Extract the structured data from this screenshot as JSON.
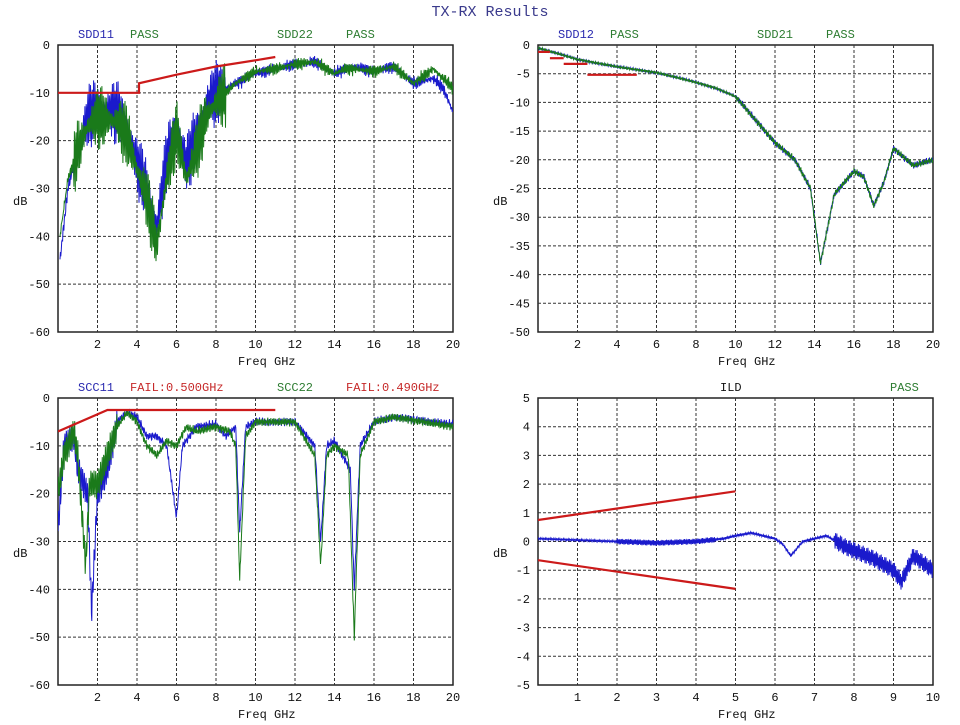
{
  "title": "TX-RX Results",
  "colors": {
    "blue": "#1a1acc",
    "green": "#1a7a1a",
    "red": "#cc1a1a",
    "grid": "#333333"
  },
  "chart_data": [
    {
      "type": "line",
      "xlabel": "Freq GHz",
      "ylabel": "dB",
      "xlim": [
        0,
        20
      ],
      "ylim": [
        -60,
        0
      ],
      "xticks": [
        2,
        4,
        6,
        8,
        10,
        12,
        14,
        16,
        18,
        20
      ],
      "yticks": [
        0,
        -10,
        -20,
        -30,
        -40,
        -50,
        -60
      ],
      "labels": [
        {
          "text": "SDD11",
          "color": "blue"
        },
        {
          "text": "PASS",
          "color": "green"
        },
        {
          "text": "SDD22",
          "color": "green"
        },
        {
          "text": "PASS",
          "color": "green"
        }
      ],
      "series": [
        {
          "name": "SDD11",
          "color": "blue",
          "ripple": "rl",
          "points": [
            [
              0.1,
              -45
            ],
            [
              0.5,
              -30
            ],
            [
              1,
              -22
            ],
            [
              1.5,
              -15
            ],
            [
              2,
              -13
            ],
            [
              3,
              -14
            ],
            [
              3.5,
              -17
            ],
            [
              4,
              -25
            ],
            [
              4.5,
              -30
            ],
            [
              5,
              -38
            ],
            [
              5.5,
              -24
            ],
            [
              6,
              -16
            ],
            [
              6.5,
              -25
            ],
            [
              7,
              -19
            ],
            [
              7.5,
              -12
            ],
            [
              8,
              -10
            ],
            [
              9,
              -8
            ],
            [
              10,
              -6
            ],
            [
              11,
              -5
            ],
            [
              12,
              -4
            ],
            [
              13,
              -3.5
            ],
            [
              14,
              -6
            ],
            [
              14.5,
              -5
            ],
            [
              15,
              -4.5
            ],
            [
              16,
              -5.5
            ],
            [
              17,
              -4.5
            ],
            [
              18,
              -8
            ],
            [
              19,
              -7
            ],
            [
              19.5,
              -9
            ],
            [
              20,
              -14
            ]
          ]
        },
        {
          "name": "SDD22",
          "color": "green",
          "ripple": "rl",
          "points": [
            [
              0.1,
              -40
            ],
            [
              0.5,
              -28
            ],
            [
              1,
              -22
            ],
            [
              1.5,
              -17
            ],
            [
              2,
              -15
            ],
            [
              3,
              -16
            ],
            [
              3.5,
              -19
            ],
            [
              4,
              -26
            ],
            [
              4.5,
              -32
            ],
            [
              5,
              -42
            ],
            [
              5.5,
              -28
            ],
            [
              6,
              -18
            ],
            [
              6.5,
              -28
            ],
            [
              7,
              -22
            ],
            [
              7.5,
              -15
            ],
            [
              8,
              -12
            ],
            [
              9,
              -8
            ],
            [
              10,
              -5.5
            ],
            [
              11,
              -5
            ],
            [
              12,
              -4
            ],
            [
              13,
              -3.5
            ],
            [
              14,
              -6
            ],
            [
              14.5,
              -5
            ],
            [
              15,
              -5
            ],
            [
              16,
              -5.5
            ],
            [
              17,
              -4.5
            ],
            [
              18,
              -8
            ],
            [
              19,
              -5
            ],
            [
              20,
              -9
            ]
          ]
        },
        {
          "name": "limit",
          "color": "red",
          "limit": true,
          "points": [
            [
              0,
              -10
            ],
            [
              4.1,
              -10
            ],
            [
              4.1,
              -8
            ],
            [
              6,
              -6.2
            ],
            [
              8,
              -4.5
            ],
            [
              10,
              -3.2
            ],
            [
              11,
              -2.5
            ]
          ]
        }
      ]
    },
    {
      "type": "line",
      "xlabel": "Freq GHz",
      "ylabel": "dB",
      "xlim": [
        0,
        20
      ],
      "ylim": [
        -50,
        0
      ],
      "xticks": [
        2,
        4,
        6,
        8,
        10,
        12,
        14,
        16,
        18,
        20
      ],
      "yticks": [
        0,
        -5,
        -10,
        -15,
        -20,
        -25,
        -30,
        -35,
        -40,
        -45,
        -50
      ],
      "labels": [
        {
          "text": "SDD12",
          "color": "blue"
        },
        {
          "text": "PASS",
          "color": "green"
        },
        {
          "text": "SDD21",
          "color": "green"
        },
        {
          "text": "PASS",
          "color": "green"
        }
      ],
      "series": [
        {
          "name": "SDD12",
          "color": "blue",
          "ripple": "il",
          "points": [
            [
              0,
              -0.5
            ],
            [
              1,
              -1.5
            ],
            [
              2,
              -2.5
            ],
            [
              4,
              -3.8
            ],
            [
              6,
              -4.8
            ],
            [
              8,
              -6.5
            ],
            [
              9,
              -7.5
            ],
            [
              10,
              -9
            ],
            [
              11,
              -13
            ],
            [
              12,
              -17
            ],
            [
              13,
              -20
            ],
            [
              13.8,
              -25
            ],
            [
              14.3,
              -38
            ],
            [
              15,
              -26
            ],
            [
              16,
              -22
            ],
            [
              16.5,
              -23
            ],
            [
              17,
              -28
            ],
            [
              17.5,
              -24
            ],
            [
              18,
              -18
            ],
            [
              19,
              -21
            ],
            [
              20,
              -20
            ]
          ]
        },
        {
          "name": "SDD21",
          "color": "green",
          "ripple": "il",
          "points": [
            [
              0,
              -0.5
            ],
            [
              1,
              -1.5
            ],
            [
              2,
              -2.5
            ],
            [
              4,
              -3.8
            ],
            [
              6,
              -4.8
            ],
            [
              8,
              -6.5
            ],
            [
              9,
              -7.5
            ],
            [
              10,
              -9
            ],
            [
              11,
              -13
            ],
            [
              12,
              -17
            ],
            [
              13,
              -20
            ],
            [
              13.8,
              -25
            ],
            [
              14.3,
              -38
            ],
            [
              15,
              -26
            ],
            [
              16,
              -22
            ],
            [
              16.5,
              -23
            ],
            [
              17,
              -28
            ],
            [
              17.5,
              -24
            ],
            [
              18,
              -18
            ],
            [
              19,
              -21
            ],
            [
              20,
              -20
            ]
          ]
        },
        {
          "name": "limit-1",
          "color": "red",
          "limit": true,
          "points": [
            [
              0,
              -1.2
            ],
            [
              0.6,
              -1.2
            ]
          ]
        },
        {
          "name": "limit-2",
          "color": "red",
          "limit": true,
          "points": [
            [
              0.6,
              -2.3
            ],
            [
              1.3,
              -2.3
            ]
          ]
        },
        {
          "name": "limit-3",
          "color": "red",
          "limit": true,
          "points": [
            [
              1.3,
              -3.3
            ],
            [
              2.5,
              -3.3
            ]
          ]
        },
        {
          "name": "limit-4",
          "color": "red",
          "limit": true,
          "points": [
            [
              2.5,
              -5.2
            ],
            [
              5,
              -5.2
            ]
          ]
        }
      ]
    },
    {
      "type": "line",
      "xlabel": "Freq GHz",
      "ylabel": "dB",
      "xlim": [
        0,
        20
      ],
      "ylim": [
        -60,
        0
      ],
      "xticks": [
        2,
        4,
        6,
        8,
        10,
        12,
        14,
        16,
        18,
        20
      ],
      "yticks": [
        0,
        -10,
        -20,
        -30,
        -40,
        -50,
        -60
      ],
      "labels": [
        {
          "text": "SCC11",
          "color": "blue"
        },
        {
          "text": "FAIL:0.500GHz",
          "color": "red"
        },
        {
          "text": "SCC22",
          "color": "green"
        },
        {
          "text": "FAIL:0.490GHz",
          "color": "red"
        }
      ],
      "series": [
        {
          "name": "SCC11",
          "color": "blue",
          "ripple": "cc",
          "points": [
            [
              0,
              -28
            ],
            [
              0.3,
              -10
            ],
            [
              0.8,
              -8
            ],
            [
              1,
              -15
            ],
            [
              1.5,
              -20
            ],
            [
              1.7,
              -45
            ],
            [
              2,
              -20
            ],
            [
              2.5,
              -15
            ],
            [
              3,
              -5
            ],
            [
              3.5,
              -3
            ],
            [
              4,
              -4
            ],
            [
              4.5,
              -8
            ],
            [
              5,
              -8
            ],
            [
              5.5,
              -10
            ],
            [
              6,
              -25
            ],
            [
              6.3,
              -10
            ],
            [
              7,
              -6
            ],
            [
              8,
              -5.5
            ],
            [
              8.5,
              -8
            ],
            [
              9,
              -6
            ],
            [
              9.2,
              -28
            ],
            [
              9.5,
              -6
            ],
            [
              10,
              -5
            ],
            [
              12,
              -5
            ],
            [
              13,
              -10
            ],
            [
              13.3,
              -30
            ],
            [
              13.6,
              -10
            ],
            [
              14,
              -9
            ],
            [
              14.8,
              -15
            ],
            [
              15,
              -40
            ],
            [
              15.3,
              -10
            ],
            [
              16,
              -5
            ],
            [
              17,
              -4
            ],
            [
              20,
              -5.5
            ]
          ]
        },
        {
          "name": "SCC22",
          "color": "green",
          "ripple": "cc",
          "points": [
            [
              0,
              -20
            ],
            [
              0.3,
              -12
            ],
            [
              0.8,
              -7
            ],
            [
              1,
              -12
            ],
            [
              1.4,
              -35
            ],
            [
              1.6,
              -18
            ],
            [
              2,
              -18
            ],
            [
              2.5,
              -12
            ],
            [
              3,
              -6
            ],
            [
              3.5,
              -3
            ],
            [
              4,
              -5
            ],
            [
              4.5,
              -10
            ],
            [
              5,
              -12
            ],
            [
              5.5,
              -9
            ],
            [
              6,
              -10
            ],
            [
              6.5,
              -6
            ],
            [
              7,
              -7
            ],
            [
              8,
              -6
            ],
            [
              8.7,
              -7
            ],
            [
              9,
              -10
            ],
            [
              9.2,
              -38
            ],
            [
              9.5,
              -8
            ],
            [
              10,
              -5
            ],
            [
              12,
              -5
            ],
            [
              13,
              -12
            ],
            [
              13.3,
              -35
            ],
            [
              13.6,
              -12
            ],
            [
              14,
              -10
            ],
            [
              14.7,
              -12
            ],
            [
              15,
              -50
            ],
            [
              15.3,
              -12
            ],
            [
              16,
              -5
            ],
            [
              17,
              -4
            ],
            [
              20,
              -6
            ]
          ]
        },
        {
          "name": "limit",
          "color": "red",
          "limit": true,
          "points": [
            [
              0,
              -7
            ],
            [
              2.5,
              -2.5
            ],
            [
              11,
              -2.5
            ]
          ]
        }
      ]
    },
    {
      "type": "line",
      "xlabel": "Freq GHz",
      "ylabel": "dB",
      "xlim": [
        0,
        10
      ],
      "ylim": [
        -5,
        5
      ],
      "xticks": [
        1,
        2,
        3,
        4,
        5,
        6,
        7,
        8,
        9,
        10
      ],
      "yticks": [
        5,
        4,
        3,
        2,
        1,
        0,
        -1,
        -2,
        -3,
        -4,
        -5
      ],
      "labels": [
        {
          "text": "ILD",
          "color": "black"
        },
        {
          "text": "PASS",
          "color": "green"
        }
      ],
      "series": [
        {
          "name": "ILD",
          "color": "blue",
          "ripple": "ild",
          "points": [
            [
              0,
              0.1
            ],
            [
              1,
              0.05
            ],
            [
              2,
              0
            ],
            [
              3,
              -0.05
            ],
            [
              4,
              0
            ],
            [
              4.7,
              0.1
            ],
            [
              5,
              0.2
            ],
            [
              5.4,
              0.3
            ],
            [
              6,
              0.1
            ],
            [
              6.2,
              -0.1
            ],
            [
              6.4,
              -0.5
            ],
            [
              6.7,
              0
            ],
            [
              7,
              0.1
            ],
            [
              7.3,
              0.2
            ],
            [
              7.8,
              -0.2
            ],
            [
              8.5,
              -0.6
            ],
            [
              9,
              -1
            ],
            [
              9.2,
              -1.4
            ],
            [
              9.5,
              -0.5
            ],
            [
              10,
              -1
            ]
          ]
        },
        {
          "name": "limit-upper",
          "color": "red",
          "limit": true,
          "points": [
            [
              0,
              0.75
            ],
            [
              5,
              1.75
            ]
          ]
        },
        {
          "name": "limit-lower",
          "color": "red",
          "limit": true,
          "points": [
            [
              0,
              -0.65
            ],
            [
              5,
              -1.65
            ]
          ]
        }
      ]
    }
  ]
}
